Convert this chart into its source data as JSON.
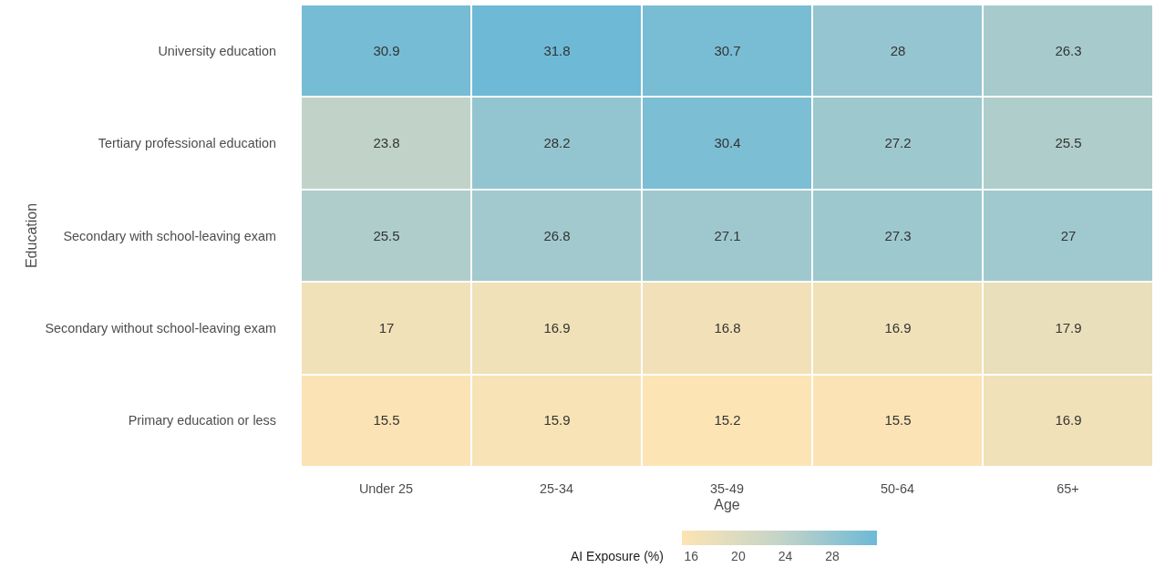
{
  "chart_data": {
    "type": "heatmap",
    "xlabel": "Age",
    "ylabel": "Education",
    "clabel": "AI Exposure (%)",
    "categories": [
      "Under 25",
      "25-34",
      "35-49",
      "50-64",
      "65+"
    ],
    "y_categories": [
      "University education",
      "Tertiary professional education",
      "Secondary with school-leaving exam",
      "Secondary without school-leaving exam",
      "Primary education or less"
    ],
    "cells": [
      [
        30.9,
        31.8,
        30.7,
        28,
        26.3
      ],
      [
        23.8,
        28.2,
        30.4,
        27.2,
        25.5
      ],
      [
        25.5,
        26.8,
        27.1,
        27.3,
        27
      ],
      [
        17,
        16.9,
        16.8,
        16.9,
        17.9
      ],
      [
        15.5,
        15.9,
        15.2,
        15.5,
        16.9
      ]
    ],
    "clim": [
      15.2,
      31.8
    ],
    "cticks": [
      16,
      20,
      24,
      28
    ],
    "colors": [
      "#fde4b4",
      "#c4d4c8",
      "#6db9d6"
    ],
    "data_labels": true
  }
}
